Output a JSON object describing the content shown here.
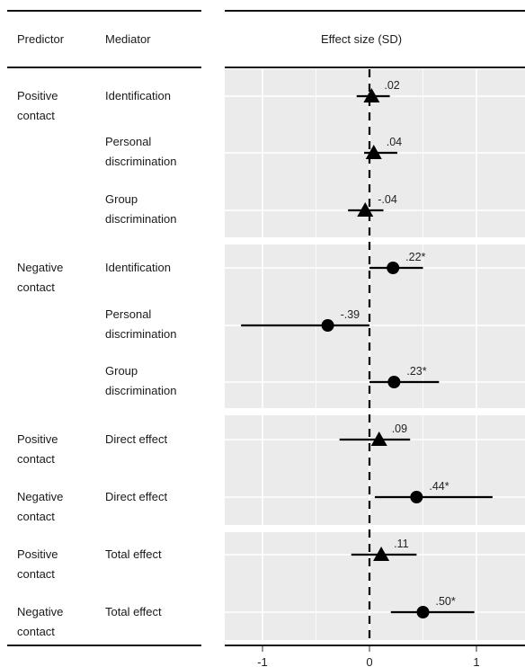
{
  "headers": {
    "predictor": "Predictor",
    "mediator": "Mediator",
    "effect": "Effect size (SD)"
  },
  "chart_data": {
    "type": "forest",
    "xlabel": "Effect size (SD)",
    "xlim": [
      -1.35,
      1.45
    ],
    "xticks": [
      -1,
      0,
      1
    ],
    "xtick_labels": [
      "-1",
      "0",
      "1"
    ],
    "reference_line": 0,
    "rows": [
      {
        "predictor": "Positive contact",
        "mediator": "Identification",
        "est": 0.02,
        "lo": -0.12,
        "hi": 0.19,
        "label": ".02",
        "marker": "triangle"
      },
      {
        "predictor": "",
        "mediator": "Personal discrimination",
        "est": 0.04,
        "lo": -0.05,
        "hi": 0.26,
        "label": ".04",
        "marker": "triangle"
      },
      {
        "predictor": "",
        "mediator": "Group discrimination",
        "est": -0.04,
        "lo": -0.2,
        "hi": 0.13,
        "label": "-.04",
        "marker": "triangle"
      },
      {
        "predictor": "Negative contact",
        "mediator": "Identification",
        "est": 0.22,
        "lo": 0.0,
        "hi": 0.5,
        "label": ".22*",
        "marker": "circle"
      },
      {
        "predictor": "",
        "mediator": "Personal discrimination",
        "est": -0.39,
        "lo": -1.2,
        "hi": 0.0,
        "label": "-.39",
        "marker": "circle"
      },
      {
        "predictor": "",
        "mediator": "Group discrimination",
        "est": 0.23,
        "lo": 0.0,
        "hi": 0.65,
        "label": ".23*",
        "marker": "circle"
      },
      {
        "predictor": "Positive contact",
        "mediator": "Direct effect",
        "est": 0.09,
        "lo": -0.28,
        "hi": 0.38,
        "label": ".09",
        "marker": "triangle"
      },
      {
        "predictor": "Negative contact",
        "mediator": "Direct effect",
        "est": 0.44,
        "lo": 0.05,
        "hi": 1.15,
        "label": ".44*",
        "marker": "circle"
      },
      {
        "predictor": "Positive contact",
        "mediator": "Total effect",
        "est": 0.11,
        "lo": -0.17,
        "hi": 0.44,
        "label": ".11",
        "marker": "triangle"
      },
      {
        "predictor": "Negative contact",
        "mediator": "Total effect",
        "est": 0.5,
        "lo": 0.2,
        "hi": 0.98,
        "label": ".50*",
        "marker": "circle"
      }
    ],
    "panels": [
      [
        0,
        2
      ],
      [
        3,
        5
      ],
      [
        6,
        7
      ],
      [
        8,
        9
      ]
    ],
    "colors": {
      "panel_bg": "#ebebeb",
      "grid": "#ffffff",
      "ink": "#000000"
    }
  }
}
